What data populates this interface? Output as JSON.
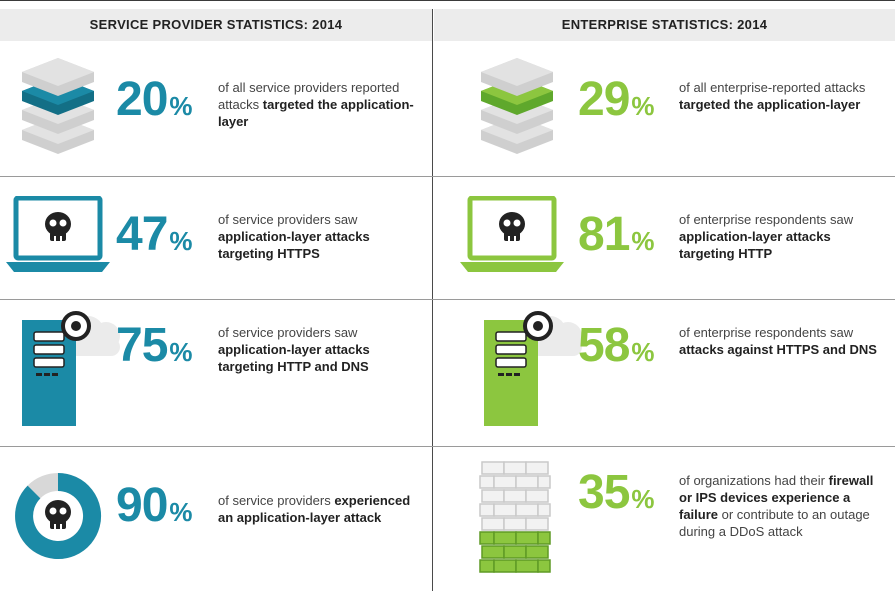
{
  "headers": {
    "left": "SERVICE PROVIDER STATISTICS: 2014",
    "right": "ENTERPRISE STATISTICS: 2014"
  },
  "percent_symbol": "%",
  "colors": {
    "blue": "#1b8aa6",
    "green": "#8cc63f",
    "gray": "#d6d6d6",
    "dark": "#222222"
  },
  "service_provider": [
    {
      "value": "20",
      "icon": "server-stack-icon",
      "text_pre": "of all service providers reported attacks ",
      "text_bold": "targeted the application-layer",
      "text_post": ""
    },
    {
      "value": "47",
      "icon": "laptop-skull-icon",
      "text_pre": "of service providers saw ",
      "text_bold": "application-layer attacks targeting HTTPS",
      "text_post": ""
    },
    {
      "value": "75",
      "icon": "server-tower-cloud-icon",
      "text_pre": "of service providers saw ",
      "text_bold": "application-layer attacks targeting HTTP and DNS",
      "text_post": ""
    },
    {
      "value": "90",
      "icon": "donut-skull-icon",
      "text_pre": "of service providers ",
      "text_bold": "experienced an application-layer attack",
      "text_post": ""
    }
  ],
  "enterprise": [
    {
      "value": "29",
      "icon": "server-stack-icon",
      "text_pre": "of all enterprise-reported attacks ",
      "text_bold": "targeted the application-layer",
      "text_post": ""
    },
    {
      "value": "81",
      "icon": "laptop-skull-icon",
      "text_pre": "of enterprise respondents saw ",
      "text_bold": "application-layer attacks targeting HTTP",
      "text_post": ""
    },
    {
      "value": "58",
      "icon": "server-tower-cloud-icon",
      "text_pre": "of enterprise respondents saw ",
      "text_bold": "attacks against HTTPS and DNS",
      "text_post": ""
    },
    {
      "value": "35",
      "icon": "brick-wall-icon",
      "text_pre": "of organizations had their ",
      "text_bold": "firewall or IPS devices experience a failure",
      "text_post": " or contribute to an outage during a DDoS attack"
    }
  ]
}
